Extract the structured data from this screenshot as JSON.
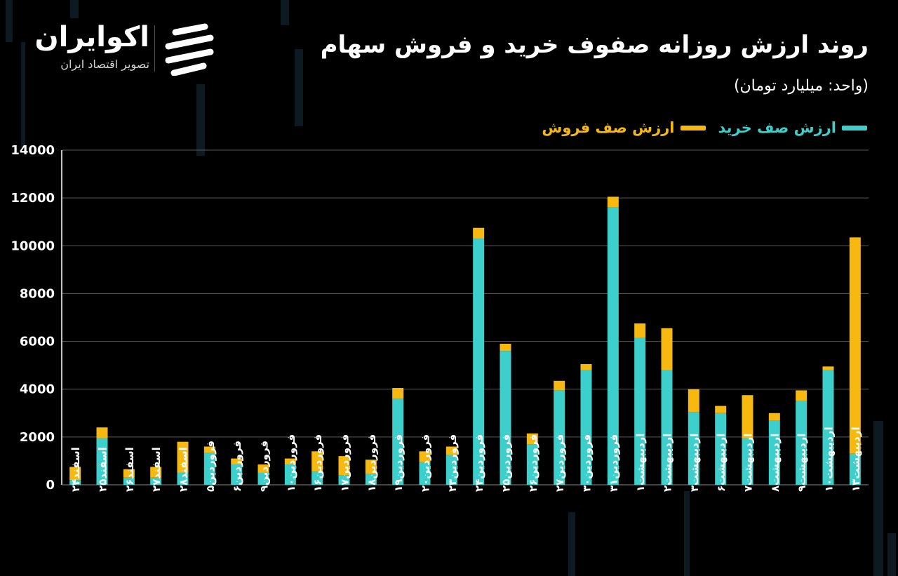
{
  "brand": {
    "name": "اکوایران",
    "tagline": "تصویر اقتصاد ایران"
  },
  "header": {
    "title": "روند ارزش روزانه صفوف خرید و فروش سهام",
    "unit": "(واحد: میلیارد تومان)"
  },
  "colors": {
    "buy": "#3ccfcc",
    "sell": "#f7b80f",
    "grid": "#5a5a5a",
    "background": "#000000"
  },
  "chart_data": {
    "type": "bar",
    "stacked": true,
    "title": "روند ارزش روزانه صفوف خرید و فروش سهام",
    "ylabel": "(واحد: میلیارد تومان)",
    "ylim": [
      0,
      14000
    ],
    "yticks": [
      0,
      2000,
      4000,
      6000,
      8000,
      10000,
      12000,
      14000
    ],
    "ytick_labels": [
      "0",
      "2000",
      "4000",
      "6000",
      "8000",
      "10000",
      "12000",
      "14000"
    ],
    "grid": true,
    "legend_position": "top-right",
    "categories": [
      "اسفند۲۴",
      "اسفند۲۵",
      "اسفند۲۶",
      "اسفند۲۷",
      "اسفند۲۸",
      "فروردین۵",
      "فروردین۶",
      "فروردین۹",
      "فروردین۱۰",
      "فروردین۱۶",
      "فروردین۱۷",
      "فروردین۱۸",
      "فروردین۱۹",
      "فروردین۲۰",
      "فروردین۲۳",
      "فروردین۲۴",
      "فروردین۲۵",
      "فروردین۲۶",
      "فروردین۲۷",
      "فروردین۳۰",
      "فروردین۳۱",
      "اردیبهشت۱",
      "اردیبهشت۲",
      "اردیبهشت۳",
      "اردیبهشت۶",
      "اردیبهشت۷",
      "اردیبهشت۸",
      "اردیبهشت۹",
      "اردیبهشت۱۰",
      "اردیبهشت۱۳"
    ],
    "series": [
      {
        "name": "ارزش صف خرید",
        "color": "#3ccfcc",
        "values": [
          200,
          1950,
          300,
          300,
          500,
          1350,
          850,
          500,
          850,
          550,
          400,
          450,
          3600,
          950,
          1250,
          10300,
          5600,
          1700,
          3950,
          4800,
          11600,
          6150,
          4800,
          3050,
          3000,
          1950,
          2700,
          3500,
          4800,
          1300
        ]
      },
      {
        "name": "ارزش صف فروش",
        "color": "#f7b80f",
        "values": [
          550,
          450,
          350,
          450,
          1300,
          250,
          250,
          350,
          250,
          850,
          800,
          600,
          450,
          450,
          350,
          450,
          300,
          450,
          400,
          250,
          450,
          600,
          1750,
          950,
          300,
          1800,
          300,
          450,
          150,
          9050
        ]
      }
    ]
  }
}
